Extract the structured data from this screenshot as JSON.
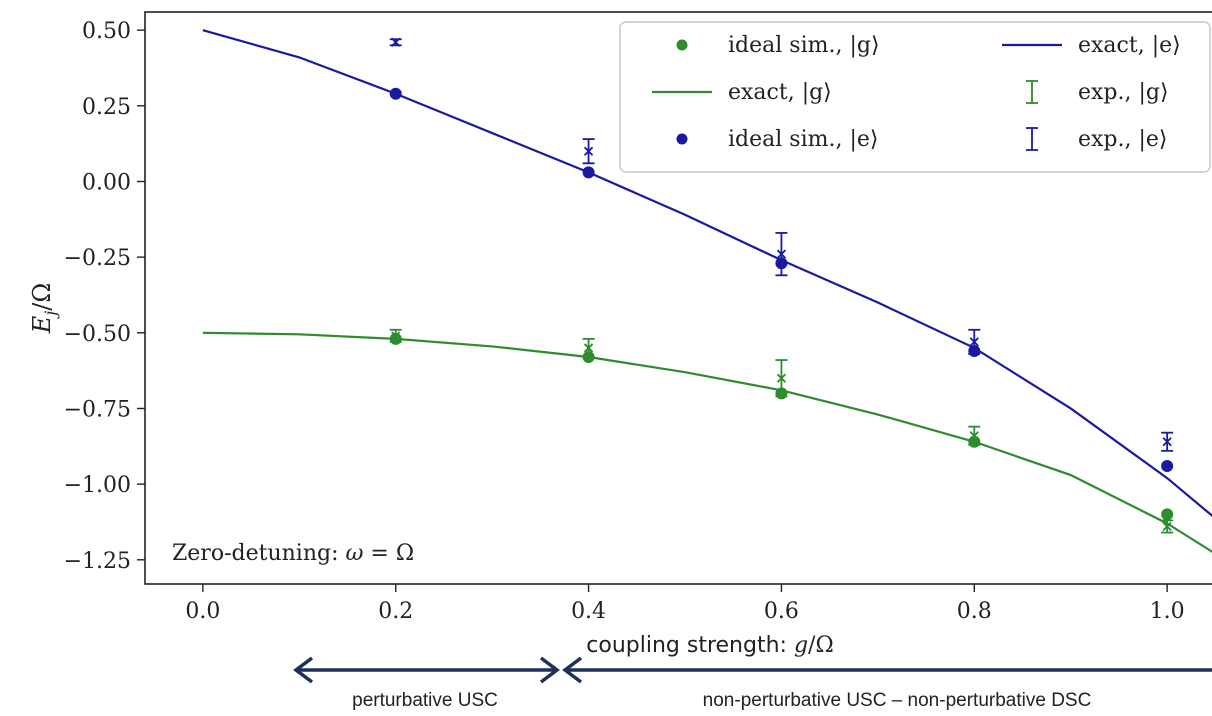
{
  "chart_data": {
    "type": "line",
    "xlabel": "coupling strength: g/Ω",
    "ylabel": "E_j/Ω",
    "xlim": [
      -0.06,
      1.06
    ],
    "ylim": [
      -1.33,
      0.56
    ],
    "xticks": [
      "0.0",
      "0.2",
      "0.4",
      "0.6",
      "0.8",
      "1.0"
    ],
    "yticks": [
      "0.50",
      "0.25",
      "0.00",
      "−0.25",
      "−0.50",
      "−0.75",
      "−1.00",
      "−1.25"
    ],
    "grid": false,
    "legend_position": "top-right",
    "annotation": "Zero-detuning: ω = Ω",
    "series": [
      {
        "name": "exact, |g⟩",
        "kind": "line",
        "color": "#2e8b2e",
        "x": [
          0.0,
          0.1,
          0.2,
          0.3,
          0.4,
          0.5,
          0.6,
          0.7,
          0.8,
          0.9,
          1.0,
          1.06
        ],
        "y": [
          -0.5,
          -0.505,
          -0.52,
          -0.545,
          -0.58,
          -0.63,
          -0.69,
          -0.77,
          -0.86,
          -0.97,
          -1.13,
          -1.25
        ]
      },
      {
        "name": "exact, |e⟩",
        "kind": "line",
        "color": "#1a1aa0",
        "x": [
          0.0,
          0.1,
          0.2,
          0.3,
          0.4,
          0.5,
          0.6,
          0.7,
          0.8,
          0.9,
          1.0,
          1.06
        ],
        "y": [
          0.5,
          0.41,
          0.29,
          0.16,
          0.03,
          -0.11,
          -0.26,
          -0.4,
          -0.55,
          -0.75,
          -0.98,
          -1.14
        ]
      },
      {
        "name": "ideal sim., |g⟩",
        "kind": "points",
        "color": "#2e8b2e",
        "x": [
          0.2,
          0.4,
          0.6,
          0.8,
          1.0
        ],
        "y": [
          -0.52,
          -0.58,
          -0.7,
          -0.86,
          -1.1
        ]
      },
      {
        "name": "ideal sim., |e⟩",
        "kind": "points",
        "color": "#1a1aa0",
        "x": [
          0.2,
          0.4,
          0.6,
          0.8,
          1.0
        ],
        "y": [
          0.29,
          0.03,
          -0.27,
          -0.56,
          -0.94
        ]
      },
      {
        "name": "exp., |g⟩",
        "kind": "errorbar",
        "color": "#2e8b2e",
        "x": [
          0.2,
          0.4,
          0.6,
          0.8,
          1.0
        ],
        "y": [
          -0.51,
          -0.55,
          -0.65,
          -0.84,
          -1.14
        ],
        "err": [
          0.02,
          0.03,
          0.06,
          0.03,
          0.02
        ]
      },
      {
        "name": "exp., |e⟩",
        "kind": "errorbar",
        "color": "#1a1aa0",
        "x": [
          0.2,
          0.4,
          0.6,
          0.8,
          1.0
        ],
        "y": [
          0.46,
          0.1,
          -0.24,
          -0.53,
          -0.86
        ],
        "err": [
          0.01,
          0.04,
          0.07,
          0.04,
          0.03
        ]
      }
    ],
    "legend": [
      {
        "label": "ideal sim., |g⟩",
        "marker": "dot",
        "color": "#2e8b2e"
      },
      {
        "label": "exact, |e⟩",
        "marker": "line",
        "color": "#1a1aa0"
      },
      {
        "label": "exact, |g⟩",
        "marker": "line",
        "color": "#2e8b2e"
      },
      {
        "label": "exp., |g⟩",
        "marker": "errorbar",
        "color": "#2e8b2e"
      },
      {
        "label": "ideal sim., |e⟩",
        "marker": "dot",
        "color": "#1a1aa0"
      },
      {
        "label": "exp., |e⟩",
        "marker": "errorbar",
        "color": "#1a1aa0"
      }
    ],
    "regimes": {
      "arrow_color": "#1f2f5a",
      "left_label": "perturbative USC",
      "right_label": "non-perturbative USC – non-perturbative DSC"
    }
  }
}
